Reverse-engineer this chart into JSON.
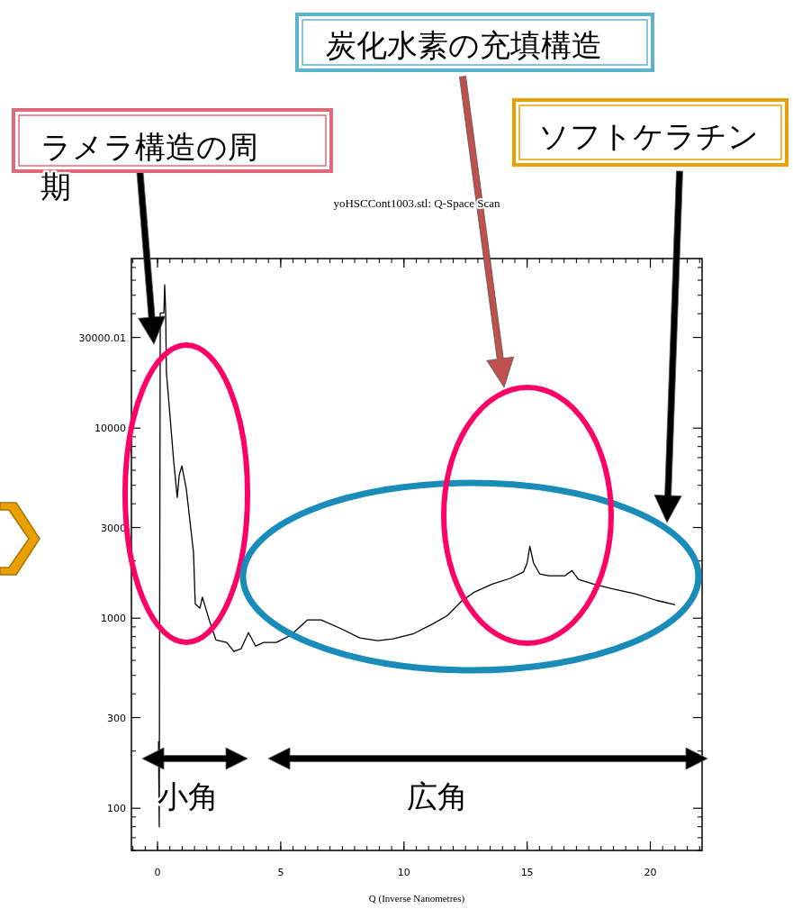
{
  "chart_data": {
    "type": "line",
    "title": "yoHSCCont1003.stl: Q-Space Scan",
    "xlabel": "Q (Inverse Nanometres)",
    "log": "y",
    "xlim": [
      -1.06,
      22.1
    ],
    "ylim": [
      60,
      78000
    ],
    "xticks": [
      0,
      5,
      10,
      15,
      20
    ],
    "yticks": [
      100,
      300,
      1000,
      3000,
      10000,
      30000.01
    ],
    "annotations": [
      "ラメラ構造の周期",
      "炭化水素の充填構造",
      "ソフトケラチン",
      "小角",
      "広角"
    ],
    "series": [
      {
        "color": "#000000",
        "x": [
          0.04,
          0.07,
          0.11,
          0.26,
          0.29,
          0.33,
          0.36,
          0.66,
          0.8,
          0.88,
          0.99,
          1.17,
          1.46,
          1.53,
          1.72,
          1.82,
          2.12,
          2.37,
          2.81,
          3.1,
          3.39,
          3.69,
          3.98,
          4.31,
          4.82,
          5.4,
          6.09,
          6.64,
          7.48,
          8.21,
          8.94,
          9.56,
          10.4,
          11.13,
          11.75,
          12.34,
          12.85,
          13.58,
          14.31,
          14.85,
          15.0,
          15.11,
          15.26,
          15.51,
          15.88,
          16.53,
          16.82,
          17.08,
          17.7,
          18.43,
          19.42,
          20.26,
          20.99
        ],
        "values": [
          224,
          80,
          40400,
          40400,
          56700,
          41300,
          19700,
          6600,
          4320,
          5670,
          6320,
          4760,
          2220,
          1190,
          1130,
          1290,
          958,
          769,
          745,
          668,
          690,
          840,
          713,
          745,
          745,
          812,
          980,
          980,
          877,
          787,
          762,
          778,
          830,
          927,
          1030,
          1230,
          1370,
          1510,
          1620,
          1750,
          1950,
          2390,
          1950,
          1710,
          1670,
          1670,
          1780,
          1600,
          1510,
          1430,
          1340,
          1240,
          1180
        ]
      }
    ]
  }
}
